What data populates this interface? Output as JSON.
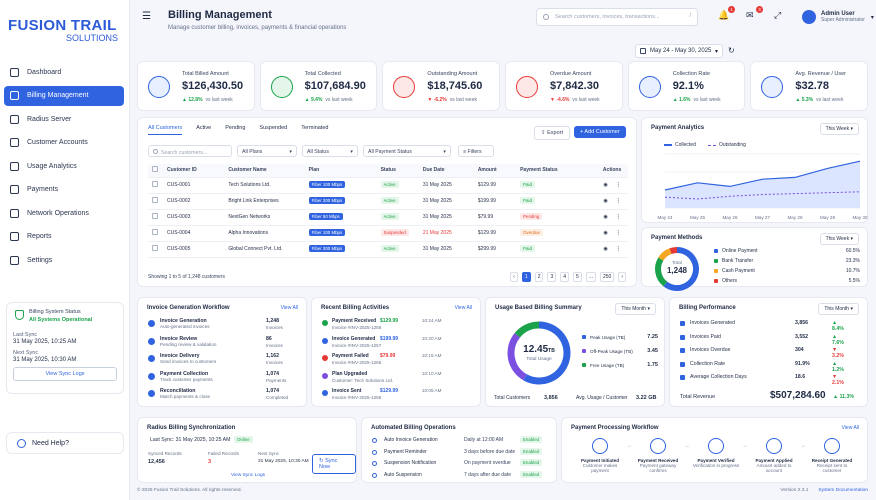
{
  "brand": {
    "line1": "FUSION TRAIL",
    "line2": "SOLUTIONS"
  },
  "sidebar": {
    "items": [
      {
        "label": "Dashboard",
        "icon": "home-icon",
        "active": false
      },
      {
        "label": "Billing Management",
        "icon": "billing-icon",
        "active": true
      },
      {
        "label": "Radius Server",
        "icon": "server-icon",
        "active": false
      },
      {
        "label": "Customer Accounts",
        "icon": "users-icon",
        "active": false
      },
      {
        "label": "Usage Analytics",
        "icon": "chart-icon",
        "active": false
      },
      {
        "label": "Payments",
        "icon": "card-icon",
        "active": false
      },
      {
        "label": "Network Operations",
        "icon": "network-icon",
        "active": false
      },
      {
        "label": "Reports",
        "icon": "report-icon",
        "active": false
      },
      {
        "label": "Settings",
        "icon": "gear-icon",
        "active": false
      }
    ],
    "sync": {
      "title": "Billing System Status",
      "status": "All Systems Operational",
      "last_sync_label": "Last Sync",
      "last_sync": "31 May 2025, 10:25 AM",
      "next_sync_label": "Next Sync",
      "next_sync": "31 May 2025, 10:30 AM",
      "button": "View Sync Logs"
    },
    "help": "Need Help?"
  },
  "header": {
    "title": "Billing Management",
    "subtitle": "Manage customer billing, invoices, payments & financial operations",
    "search_placeholder": "Search customers, invoices, transactions...",
    "search_key": "/",
    "notif_count": "1",
    "mail_count": "3",
    "user_name": "Admin User",
    "user_role": "Super Administrator",
    "date_range": "May 24 - May 30, 2025"
  },
  "kpis": [
    {
      "label": "Total Billed Amount",
      "value": "$126,430.50",
      "change": "12.8%",
      "dir": "up",
      "note": "vs last week",
      "color": "#2f63e0",
      "bg": "#e8efff",
      "icon": "dollar-icon"
    },
    {
      "label": "Total Collected",
      "value": "$107,684.90",
      "change": "9.4%",
      "dir": "up",
      "note": "vs last week",
      "color": "#1aa34a",
      "bg": "#e4f6e9",
      "icon": "collected-icon"
    },
    {
      "label": "Outstanding Amount",
      "value": "$18,745.60",
      "change": "-6.2%",
      "dir": "down",
      "note": "vs last week",
      "color": "#e53935",
      "bg": "#fde7e7",
      "icon": "invoice-icon"
    },
    {
      "label": "Overdue Amount",
      "value": "$7,842.30",
      "change": "-4.6%",
      "dir": "down",
      "note": "vs last week",
      "color": "#e53935",
      "bg": "#fde7e7",
      "icon": "clock-icon"
    },
    {
      "label": "Collection Rate",
      "value": "92.1%",
      "change": "1.6%",
      "dir": "up",
      "note": "vs last week",
      "color": "#2f63e0",
      "bg": "#e8efff",
      "icon": "percent-icon"
    },
    {
      "label": "Avg. Revenue / User",
      "value": "$32.78",
      "change": "5.3%",
      "dir": "up",
      "note": "vs last week",
      "color": "#2f63e0",
      "bg": "#e8efff",
      "icon": "user-icon"
    }
  ],
  "customers": {
    "tabs": [
      "All Customers",
      "Active",
      "Pending",
      "Suspended",
      "Terminated"
    ],
    "export": "Export",
    "add": "+ Add Customer",
    "search_placeholder": "Search customers...",
    "filters": [
      "All Plans",
      "All Status",
      "All Payment Status",
      "Filters"
    ],
    "columns": [
      "Customer ID",
      "Customer Name",
      "Plan",
      "Status",
      "Due Date",
      "Amount",
      "Payment Status",
      "Actions"
    ],
    "rows": [
      {
        "id": "CUS-0001",
        "name": "Tech Solutions Ltd.",
        "plan": "Fiber 100 Mbps",
        "status": "Active",
        "st": "ok",
        "due": "31 May 2025",
        "due_bad": false,
        "amount": "$129.99",
        "pay": "Paid",
        "pt": "ok"
      },
      {
        "id": "CUS-0002",
        "name": "Bright Link Enterprises",
        "plan": "Fiber 200 Mbps",
        "status": "Active",
        "st": "ok",
        "due": "31 May 2025",
        "due_bad": false,
        "amount": "$199.99",
        "pay": "Paid",
        "pt": "ok"
      },
      {
        "id": "CUS-0003",
        "name": "NextGen Networks",
        "plan": "Fiber 50 Mbps",
        "status": "Active",
        "st": "ok",
        "due": "31 May 2025",
        "due_bad": false,
        "amount": "$79.99",
        "pay": "Pending",
        "pt": "bad"
      },
      {
        "id": "CUS-0004",
        "name": "Alpha Innovations",
        "plan": "Fiber 100 Mbps",
        "status": "Suspended",
        "st": "bad",
        "due": "21 May 2025",
        "due_bad": true,
        "amount": "$129.99",
        "pay": "Overdue",
        "pt": "warn"
      },
      {
        "id": "CUS-0005",
        "name": "Global Connect Pvt. Ltd.",
        "plan": "Fiber 300 Mbps",
        "status": "Active",
        "st": "ok",
        "due": "31 May 2025",
        "due_bad": false,
        "amount": "$299.99",
        "pay": "Paid",
        "pt": "ok"
      }
    ],
    "showing": "Showing 1 to 5 of 1,248 customers",
    "pages": [
      "1",
      "2",
      "3",
      "4",
      "5",
      "...",
      "250"
    ]
  },
  "analytics": {
    "title": "Payment Analytics",
    "period": "This Week",
    "legend": [
      "Collected",
      "Outstanding"
    ],
    "chart_data": {
      "type": "line",
      "x": [
        "May 24",
        "May 25",
        "May 26",
        "May 27",
        "May 28",
        "May 29",
        "May 30"
      ],
      "series": [
        {
          "name": "Collected",
          "values": [
            10,
            14,
            12,
            16,
            17,
            22,
            26
          ]
        },
        {
          "name": "Outstanding",
          "values": [
            6,
            5,
            6.5,
            7.5,
            8,
            8.5,
            9
          ]
        }
      ],
      "ylim": [
        0,
        30
      ]
    }
  },
  "methods": {
    "title": "Payment Methods",
    "period": "This Week",
    "center_label": "Total",
    "center_value": "1,248",
    "chart_data": {
      "type": "pie",
      "categories": [
        "Online Payment",
        "Bank Transfer",
        "Cash Payment",
        "Others"
      ],
      "values": [
        60.5,
        23.3,
        10.7,
        5.5
      ],
      "labels": [
        "60.5%",
        "23.3%",
        "10.7%",
        "5.5%"
      ],
      "colors": [
        "#2f63e0",
        "#1aa34a",
        "#f5a623",
        "#e53935"
      ]
    }
  },
  "invoice_wf": {
    "title": "Invoice Generation Workflow",
    "view_all": "View All",
    "items": [
      {
        "name": "Invoice Generation",
        "sub": "Auto-generated invoices",
        "count": "1,248",
        "cs": "Invoices"
      },
      {
        "name": "Invoice Review",
        "sub": "Pending review & validation",
        "count": "86",
        "cs": "Invoices"
      },
      {
        "name": "Invoice Delivery",
        "sub": "Send invoices to customers",
        "count": "1,162",
        "cs": "Invoices"
      },
      {
        "name": "Payment Collection",
        "sub": "Track customer payments",
        "count": "1,074",
        "cs": "Payments"
      },
      {
        "name": "Reconciliation",
        "sub": "Match payments & close",
        "count": "1,074",
        "cs": "Completed"
      }
    ]
  },
  "activities": {
    "title": "Recent Billing Activities",
    "view_all": "View All",
    "items": [
      {
        "name": "Payment Received",
        "sub": "Invoice #INV-2025-1258",
        "amount": "$129.99",
        "time": "10:24 AM",
        "color": "#1aa34a"
      },
      {
        "name": "Invoice Generated",
        "sub": "Invoice #INV-2025-1257",
        "amount": "$199.99",
        "time": "10:20 AM",
        "color": "#2f63e0"
      },
      {
        "name": "Payment Failed",
        "sub": "Invoice #INV-2025-1256",
        "amount": "$79.99",
        "time": "10:15 AM",
        "color": "#e53935"
      },
      {
        "name": "Plan Upgraded",
        "sub": "Customer: Tech Solutions Ltd.",
        "amount": "",
        "time": "10:10 AM",
        "color": "#7b4fe0"
      },
      {
        "name": "Invoice Sent",
        "sub": "Invoice #INV-2025-1255",
        "amount": "$129.99",
        "time": "10:05 AM",
        "color": "#2f63e0"
      }
    ]
  },
  "usage": {
    "title": "Usage Based Billing Summary",
    "period": "This Month",
    "center_value": "12.45",
    "center_unit": "TB",
    "center_label": "Total Usage",
    "chart_data": {
      "type": "pie",
      "categories": [
        "Peak Usage (TB)",
        "Off-Peak Usage (TB)",
        "Free Usage (TB)"
      ],
      "values": [
        7.25,
        3.45,
        1.75
      ],
      "colors": [
        "#2f63e0",
        "#7b4fe0",
        "#1aa34a"
      ]
    },
    "value_labels": [
      "7.25",
      "3.45",
      "1.75"
    ],
    "total_customers_label": "Total Customers",
    "total_customers": "3,856",
    "avg_label": "Avg. Usage / Customer",
    "avg": "3.22 GB"
  },
  "perf": {
    "title": "Billing Performance",
    "period": "This Month",
    "rows": [
      {
        "name": "Invoices Generated",
        "value": "3,856",
        "change": "8.4%",
        "dir": "up"
      },
      {
        "name": "Invoices Paid",
        "value": "3,552",
        "change": "7.6%",
        "dir": "up"
      },
      {
        "name": "Invoices Overdue",
        "value": "304",
        "change": "3.2%",
        "dir": "down"
      },
      {
        "name": "Collection Rate",
        "value": "91.9%",
        "change": "1.2%",
        "dir": "up"
      },
      {
        "name": "Average Collection Days",
        "value": "18.6",
        "change": "2.1%",
        "dir": "down"
      }
    ],
    "revenue_label": "Total Revenue",
    "revenue": "$507,284.60",
    "revenue_change": "11.3%"
  },
  "radius": {
    "title": "Radius Billing Synchronization",
    "last_sync": "Last Sync: 31 May 2025, 10:25 AM",
    "status": "Online",
    "cols": [
      "Synced Records",
      "Failed Records",
      "Next Sync"
    ],
    "vals": [
      "12,456",
      "3",
      "31 May 2025, 10:30 AM"
    ],
    "button": "Sync Now",
    "logs": "View Sync Logs"
  },
  "automated": {
    "title": "Automated Billing Operations",
    "rows": [
      {
        "name": "Auto Invoice Generation",
        "sched": "Daily at 12:00 AM",
        "state": "Enabled"
      },
      {
        "name": "Payment Reminder",
        "sched": "3 days before due date",
        "state": "Enabled"
      },
      {
        "name": "Suspension Notification",
        "sched": "On payment overdue",
        "state": "Enabled"
      },
      {
        "name": "Auto Suspension",
        "sched": "7 days after due date",
        "state": "Enabled"
      }
    ]
  },
  "ppw": {
    "title": "Payment Processing Workflow",
    "view_all": "View All",
    "steps": [
      {
        "name": "Payment Initiated",
        "sub": "Customer makes payment"
      },
      {
        "name": "Payment Received",
        "sub": "Payment gateway confirms"
      },
      {
        "name": "Payment Verified",
        "sub": "Verification in progress"
      },
      {
        "name": "Payment Applied",
        "sub": "Amount added to account"
      },
      {
        "name": "Receipt Generated",
        "sub": "Receipt sent to customer"
      }
    ]
  },
  "footer": {
    "copy": "© 2025 Fusion Trail Solutions. All rights reserved.",
    "version": "Version 2.3.1",
    "docs": "System Documentation"
  }
}
